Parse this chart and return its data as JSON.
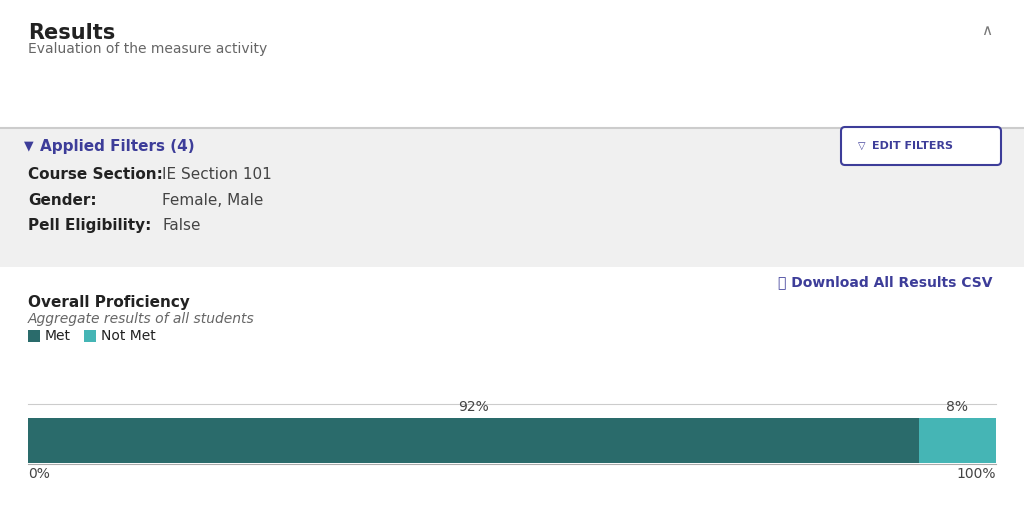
{
  "title": "Results",
  "subtitle": "Evaluation of the measure activity",
  "filter_title": "Applied Filters (4)",
  "filter_color": "#3d3d99",
  "edit_filters_text": "EDIT FILTERS",
  "filters": [
    {
      "label": "Course Section:",
      "value": "IE Section 101"
    },
    {
      "label": "Gender:",
      "value": "Female, Male"
    },
    {
      "label": "Pell Eligibility:",
      "value": "False"
    }
  ],
  "download_text": "⤓ Download All Results CSV",
  "download_color": "#3d3d99",
  "chart_title": "Overall Proficiency",
  "chart_subtitle": "Aggregate results of all students",
  "legend_met": "Met",
  "legend_not_met": "Not Met",
  "met_pct": 92,
  "not_met_pct": 8,
  "met_color": "#2a6b6b",
  "not_met_color": "#45b5b5",
  "white_bg": "#ffffff",
  "section_bg": "#f0f0f0",
  "title_fontsize": 15,
  "subtitle_fontsize": 10,
  "filter_fontsize": 11,
  "label_fontsize": 10,
  "chart_title_fontsize": 11,
  "chart_subtitle_fontsize": 10,
  "axis_label_fontsize": 10,
  "pct_label_fontsize": 10,
  "collapse_arrow": "∧",
  "title_color": "#222222",
  "label_bold_color": "#222222",
  "value_color": "#444444"
}
